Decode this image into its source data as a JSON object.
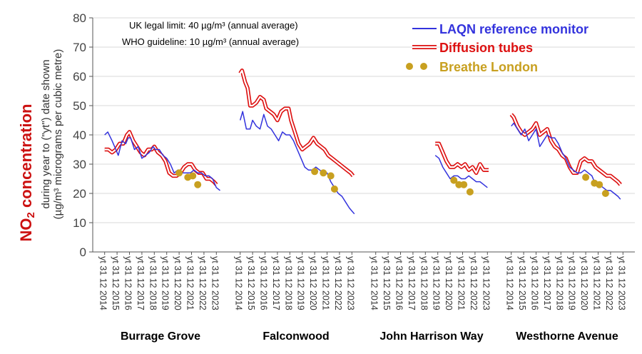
{
  "chart_data": {
    "type": "line",
    "ylabel_main": "NO",
    "ylabel_sub": "2",
    "ylabel_main_rest": " concentration",
    "ylabel_line2": "during year to (\"yt\") date shown",
    "ylabel_line3": "(µg/m³ micrograms per cubic metre)",
    "ylim": [
      0,
      80
    ],
    "yticks": [
      "0",
      "10",
      "20",
      "30",
      "40",
      "50",
      "60",
      "70",
      "80"
    ],
    "grid": true,
    "legend_position": "top-right",
    "notes": [
      "UK legal limit:  40 µg/m³  (annual average)",
      "WHO guideline:  10 µg/m³  (annual average)"
    ],
    "legend": [
      {
        "key": "laqn",
        "label": "LAQN reference monitor",
        "color": "#3333dd"
      },
      {
        "key": "tubes",
        "label": "Diffusion tubes",
        "color": "#dd1111"
      },
      {
        "key": "breathe",
        "label": "Breathe London",
        "color": "#c8a020"
      }
    ],
    "tick_labels": [
      "yt 31 12 2014",
      "yt 31 12 2015",
      "yt 31 12 2016",
      "yt 31 12 2017",
      "yt 31 12 2018",
      "yt 31 12 2019",
      "yt 31 12 2020",
      "yt 31 12 2021",
      "yt 31 12 2022",
      "yt 31 12 2023"
    ],
    "sites": [
      {
        "name": "Burrage Grove",
        "laqn": [
          [
            2014.0,
            40
          ],
          [
            2014.25,
            41
          ],
          [
            2014.6,
            38
          ],
          [
            2014.9,
            35
          ],
          [
            2015.1,
            33
          ],
          [
            2015.4,
            38
          ],
          [
            2015.7,
            37
          ],
          [
            2015.9,
            39
          ],
          [
            2016.1,
            39
          ],
          [
            2016.4,
            35
          ],
          [
            2016.7,
            36
          ],
          [
            2017.0,
            32
          ],
          [
            2017.3,
            33
          ],
          [
            2017.6,
            34
          ],
          [
            2017.9,
            36
          ],
          [
            2018.1,
            35
          ],
          [
            2018.4,
            35
          ],
          [
            2018.7,
            33
          ],
          [
            2019.0,
            32
          ],
          [
            2019.3,
            30
          ],
          [
            2019.6,
            27
          ],
          [
            2019.9,
            28
          ],
          [
            2020.2,
            27
          ],
          [
            2020.6,
            27
          ],
          [
            2020.9,
            27
          ],
          [
            2021.2,
            28
          ],
          [
            2021.5,
            27
          ],
          [
            2021.8,
            27
          ],
          [
            2022.1,
            26
          ],
          [
            2022.4,
            26
          ],
          [
            2022.7,
            25
          ],
          [
            2023.0,
            22
          ],
          [
            2023.3,
            21
          ]
        ],
        "tubes": [
          [
            2014.0,
            35
          ],
          [
            2014.3,
            35
          ],
          [
            2014.6,
            34
          ],
          [
            2014.9,
            35
          ],
          [
            2015.2,
            37
          ],
          [
            2015.5,
            37
          ],
          [
            2015.8,
            40
          ],
          [
            2016.0,
            41
          ],
          [
            2016.3,
            38
          ],
          [
            2016.6,
            36
          ],
          [
            2016.9,
            34
          ],
          [
            2017.2,
            33
          ],
          [
            2017.5,
            35
          ],
          [
            2017.8,
            35
          ],
          [
            2018.0,
            36
          ],
          [
            2018.3,
            34
          ],
          [
            2018.6,
            33
          ],
          [
            2018.9,
            31
          ],
          [
            2019.2,
            27
          ],
          [
            2019.5,
            26
          ],
          [
            2019.8,
            26
          ],
          [
            2020.1,
            27
          ],
          [
            2020.4,
            29
          ],
          [
            2020.7,
            30
          ],
          [
            2021.0,
            30
          ],
          [
            2021.3,
            28
          ],
          [
            2021.6,
            27
          ],
          [
            2021.9,
            27
          ],
          [
            2022.2,
            25
          ],
          [
            2022.5,
            25
          ],
          [
            2022.8,
            24
          ],
          [
            2023.0,
            23
          ]
        ],
        "breathe": [
          [
            2020.0,
            27
          ],
          [
            2020.7,
            25.5
          ],
          [
            2021.1,
            26
          ],
          [
            2021.5,
            23
          ]
        ]
      },
      {
        "name": "Falconwood",
        "laqn": [
          [
            2014.0,
            45
          ],
          [
            2014.2,
            48
          ],
          [
            2014.5,
            42
          ],
          [
            2014.8,
            42
          ],
          [
            2015.0,
            45
          ],
          [
            2015.3,
            43
          ],
          [
            2015.6,
            42
          ],
          [
            2015.9,
            47
          ],
          [
            2016.2,
            43
          ],
          [
            2016.5,
            42
          ],
          [
            2016.8,
            40
          ],
          [
            2017.1,
            38
          ],
          [
            2017.4,
            41
          ],
          [
            2017.7,
            40
          ],
          [
            2018.0,
            40
          ],
          [
            2018.3,
            38
          ],
          [
            2018.6,
            35
          ],
          [
            2018.9,
            32
          ],
          [
            2019.2,
            29
          ],
          [
            2019.5,
            28
          ],
          [
            2019.8,
            28
          ],
          [
            2020.1,
            29
          ],
          [
            2020.4,
            28
          ],
          [
            2020.7,
            27
          ],
          [
            2021.0,
            27
          ],
          [
            2021.3,
            24
          ],
          [
            2021.6,
            22
          ],
          [
            2021.9,
            20
          ],
          [
            2022.2,
            19
          ],
          [
            2022.5,
            17
          ],
          [
            2022.8,
            15
          ],
          [
            2023.0,
            14
          ],
          [
            2023.2,
            13
          ]
        ],
        "tubes": [
          [
            2014.0,
            61
          ],
          [
            2014.15,
            62
          ],
          [
            2014.4,
            58
          ],
          [
            2014.6,
            56
          ],
          [
            2014.8,
            50
          ],
          [
            2015.0,
            50
          ],
          [
            2015.3,
            51
          ],
          [
            2015.6,
            53
          ],
          [
            2015.9,
            52
          ],
          [
            2016.1,
            49
          ],
          [
            2016.4,
            48
          ],
          [
            2016.7,
            47
          ],
          [
            2017.0,
            45
          ],
          [
            2017.3,
            48
          ],
          [
            2017.6,
            49
          ],
          [
            2017.9,
            49
          ],
          [
            2018.1,
            45
          ],
          [
            2018.4,
            41
          ],
          [
            2018.7,
            37
          ],
          [
            2019.0,
            35
          ],
          [
            2019.3,
            36
          ],
          [
            2019.6,
            37
          ],
          [
            2019.9,
            39
          ],
          [
            2020.2,
            37
          ],
          [
            2020.5,
            36
          ],
          [
            2020.8,
            35
          ],
          [
            2021.1,
            33
          ],
          [
            2021.4,
            32
          ],
          [
            2021.7,
            31
          ],
          [
            2022.0,
            30
          ],
          [
            2022.3,
            29
          ],
          [
            2022.6,
            28
          ],
          [
            2022.9,
            27
          ],
          [
            2023.1,
            26
          ]
        ],
        "breathe": [
          [
            2020.0,
            27.5
          ],
          [
            2020.7,
            27
          ],
          [
            2021.3,
            26
          ],
          [
            2021.6,
            21.5
          ]
        ]
      },
      {
        "name": "John Harrison Way",
        "laqn": [
          [
            2018.8,
            33
          ],
          [
            2019.1,
            32
          ],
          [
            2019.4,
            29
          ],
          [
            2019.7,
            27
          ],
          [
            2020.0,
            25
          ],
          [
            2020.3,
            26
          ],
          [
            2020.6,
            26
          ],
          [
            2020.9,
            25
          ],
          [
            2021.2,
            25
          ],
          [
            2021.5,
            26
          ],
          [
            2021.8,
            25
          ],
          [
            2022.1,
            24
          ],
          [
            2022.4,
            24
          ],
          [
            2022.7,
            23
          ],
          [
            2023.0,
            22
          ]
        ],
        "tubes": [
          [
            2018.8,
            37
          ],
          [
            2019.1,
            37
          ],
          [
            2019.4,
            34
          ],
          [
            2019.7,
            31
          ],
          [
            2020.0,
            29
          ],
          [
            2020.3,
            29
          ],
          [
            2020.6,
            30
          ],
          [
            2020.9,
            29
          ],
          [
            2021.2,
            30
          ],
          [
            2021.5,
            28
          ],
          [
            2021.8,
            29
          ],
          [
            2022.1,
            27
          ],
          [
            2022.4,
            30
          ],
          [
            2022.7,
            28
          ],
          [
            2023.0,
            28
          ],
          [
            2023.1,
            28
          ]
        ],
        "breathe": [
          [
            2020.3,
            24.5
          ],
          [
            2020.7,
            23
          ],
          [
            2021.1,
            23
          ],
          [
            2021.6,
            20.5
          ]
        ]
      },
      {
        "name": "Westhorne Avenue",
        "laqn": [
          [
            2014.0,
            43
          ],
          [
            2014.2,
            44
          ],
          [
            2014.5,
            42
          ],
          [
            2014.8,
            40
          ],
          [
            2015.1,
            42
          ],
          [
            2015.4,
            38
          ],
          [
            2015.7,
            40
          ],
          [
            2016.0,
            42
          ],
          [
            2016.3,
            36
          ],
          [
            2016.6,
            38
          ],
          [
            2016.9,
            40
          ],
          [
            2017.2,
            39
          ],
          [
            2017.5,
            39
          ],
          [
            2017.8,
            37
          ],
          [
            2018.1,
            34
          ],
          [
            2018.4,
            32
          ],
          [
            2018.7,
            29
          ],
          [
            2019.0,
            28
          ],
          [
            2019.3,
            27
          ],
          [
            2019.6,
            27
          ],
          [
            2019.9,
            28
          ],
          [
            2020.2,
            27
          ],
          [
            2020.5,
            26
          ],
          [
            2020.8,
            23
          ],
          [
            2021.1,
            23
          ],
          [
            2021.4,
            22
          ],
          [
            2021.7,
            21
          ],
          [
            2022.0,
            21
          ],
          [
            2022.3,
            20
          ],
          [
            2022.6,
            19
          ],
          [
            2022.8,
            18
          ]
        ],
        "tubes": [
          [
            2014.0,
            47
          ],
          [
            2014.2,
            46
          ],
          [
            2014.5,
            43
          ],
          [
            2014.8,
            41
          ],
          [
            2015.1,
            40
          ],
          [
            2015.4,
            41
          ],
          [
            2015.7,
            42
          ],
          [
            2016.0,
            44
          ],
          [
            2016.3,
            40
          ],
          [
            2016.6,
            41
          ],
          [
            2016.9,
            42
          ],
          [
            2017.2,
            38
          ],
          [
            2017.5,
            36
          ],
          [
            2017.8,
            35
          ],
          [
            2018.1,
            33
          ],
          [
            2018.4,
            32
          ],
          [
            2018.7,
            29
          ],
          [
            2019.0,
            27
          ],
          [
            2019.3,
            27
          ],
          [
            2019.6,
            31
          ],
          [
            2019.9,
            32
          ],
          [
            2020.2,
            31
          ],
          [
            2020.5,
            31
          ],
          [
            2020.8,
            29
          ],
          [
            2021.1,
            28
          ],
          [
            2021.4,
            27
          ],
          [
            2021.7,
            26
          ],
          [
            2022.0,
            26
          ],
          [
            2022.3,
            25
          ],
          [
            2022.6,
            24
          ],
          [
            2022.8,
            23
          ]
        ],
        "breathe": [
          [
            2020.0,
            25.5
          ],
          [
            2020.7,
            23.5
          ],
          [
            2021.1,
            23
          ],
          [
            2021.6,
            20
          ]
        ]
      }
    ]
  }
}
